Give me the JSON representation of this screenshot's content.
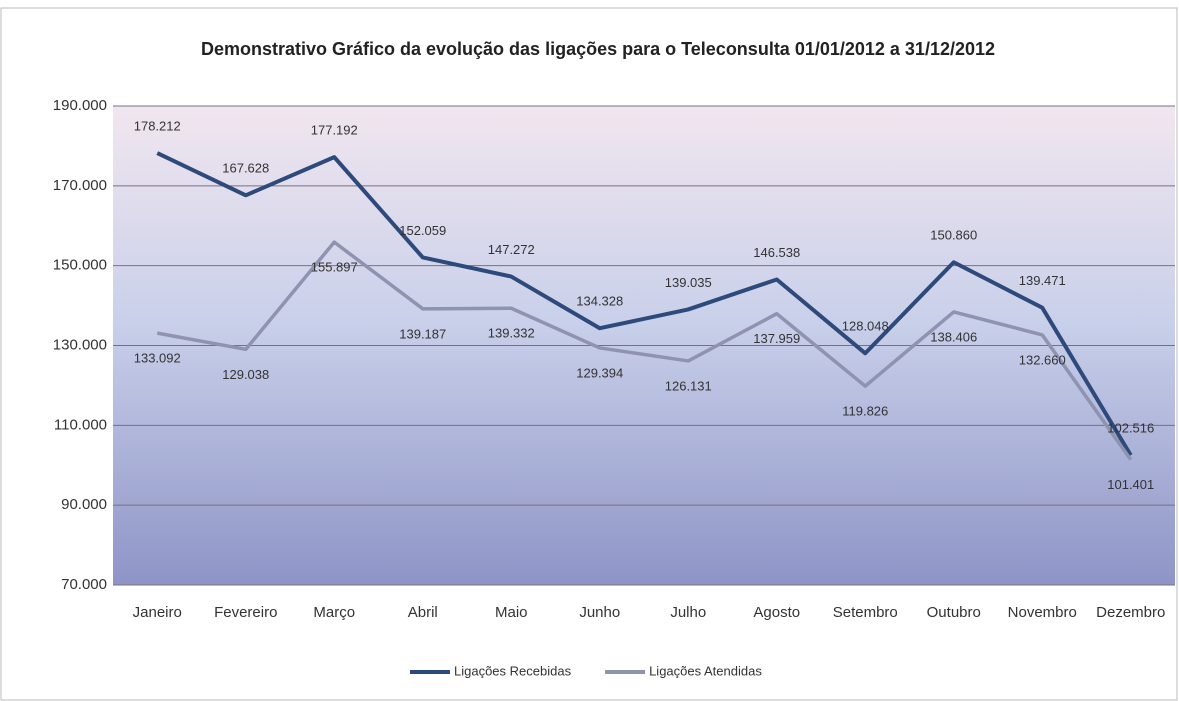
{
  "chart_data": {
    "type": "line",
    "title": "Demonstrativo Gráfico da evolução das ligações para o Teleconsulta 01/01/2012 a 31/12/2012",
    "categories": [
      "Janeiro",
      "Fevereiro",
      "Março",
      "Abril",
      "Maio",
      "Junho",
      "Julho",
      "Agosto",
      "Setembro",
      "Outubro",
      "Novembro",
      "Dezembro"
    ],
    "series": [
      {
        "name": "Ligações Recebidas",
        "color": "#2e4a7a",
        "values": [
          178212,
          167628,
          177192,
          152059,
          147272,
          134328,
          139035,
          146538,
          128048,
          150860,
          139471,
          102516
        ],
        "value_labels": [
          "178.212",
          "167.628",
          "177.192",
          "152.059",
          "147.272",
          "134.328",
          "139.035",
          "146.538",
          "128.048",
          "150.860",
          "139.471",
          "102.516"
        ]
      },
      {
        "name": "Ligações Atendidas",
        "color": "#8f93b0",
        "values": [
          133092,
          129038,
          155897,
          139187,
          139332,
          129394,
          126131,
          137959,
          119826,
          138406,
          132660,
          101401
        ],
        "value_labels": [
          "133.092",
          "129.038",
          "155.897",
          "139.187",
          "139.332",
          "129.394",
          "126.131",
          "137.959",
          "119.826",
          "138.406",
          "132.660",
          "101.401"
        ]
      }
    ],
    "ylim": [
      70000,
      190000
    ],
    "yticks": [
      {
        "value": 70000,
        "label": "70.000"
      },
      {
        "value": 90000,
        "label": "90.000"
      },
      {
        "value": 110000,
        "label": "110.000"
      },
      {
        "value": 130000,
        "label": "130.000"
      },
      {
        "value": 150000,
        "label": "150.000"
      },
      {
        "value": 170000,
        "label": "170.000"
      },
      {
        "value": 190000,
        "label": "190.000"
      }
    ],
    "grid": true,
    "legend": "bottom"
  }
}
